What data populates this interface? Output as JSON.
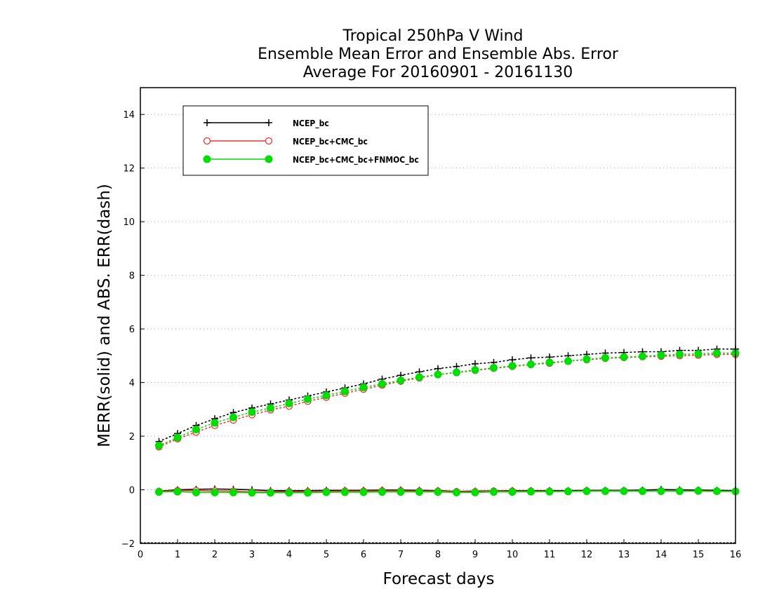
{
  "chart_data": {
    "type": "line",
    "title_lines": [
      "Tropical 250hPa V Wind",
      "Ensemble Mean Error and Ensemble Abs. Error",
      "Average For 20160901 - 20161130"
    ],
    "xlabel": "Forecast days",
    "ylabel": "MERR(solid) and ABS. ERR(dash)",
    "xlim": [
      0,
      16
    ],
    "ylim": [
      -2,
      15
    ],
    "xticks": [
      0,
      1,
      2,
      3,
      4,
      5,
      6,
      7,
      8,
      9,
      10,
      11,
      12,
      13,
      14,
      15,
      16
    ],
    "xtick_labels": [
      "0",
      "1",
      "2",
      "3",
      "4",
      "5",
      "6",
      "7",
      "8",
      "9",
      "10",
      "11",
      "12",
      "13",
      "14",
      "15",
      "16"
    ],
    "yticks": [
      -2,
      0,
      2,
      4,
      6,
      8,
      10,
      12,
      14
    ],
    "ytick_labels": [
      "−2",
      "0",
      "2",
      "4",
      "6",
      "8",
      "10",
      "12",
      "14"
    ],
    "grid": "horizontal dotted",
    "legend_position": "top-left",
    "x": [
      0.5,
      1.0,
      1.5,
      2.0,
      2.5,
      3.0,
      3.5,
      4.0,
      4.5,
      5.0,
      5.5,
      6.0,
      6.5,
      7.0,
      7.5,
      8.0,
      8.5,
      9.0,
      9.5,
      10.0,
      10.5,
      11.0,
      11.5,
      12.0,
      12.5,
      13.0,
      13.5,
      14.0,
      14.5,
      15.0,
      15.5,
      16.0
    ],
    "series": [
      {
        "name": "NCEP_bc",
        "color": "#000000",
        "marker": "plus",
        "merr": [
          -0.05,
          0.0,
          0.02,
          0.03,
          0.02,
          0.0,
          -0.03,
          -0.03,
          -0.03,
          -0.02,
          -0.02,
          -0.02,
          -0.01,
          -0.01,
          -0.02,
          -0.03,
          -0.06,
          -0.05,
          -0.04,
          -0.03,
          -0.03,
          -0.03,
          -0.03,
          -0.02,
          -0.02,
          -0.02,
          -0.01,
          0.01,
          0.0,
          -0.01,
          -0.02,
          -0.03
        ],
        "abs_err": [
          1.8,
          2.1,
          2.4,
          2.65,
          2.88,
          3.05,
          3.2,
          3.35,
          3.5,
          3.65,
          3.8,
          3.95,
          4.13,
          4.27,
          4.4,
          4.52,
          4.6,
          4.7,
          4.75,
          4.85,
          4.92,
          4.95,
          5.0,
          5.05,
          5.1,
          5.12,
          5.15,
          5.15,
          5.2,
          5.2,
          5.25,
          5.25
        ]
      },
      {
        "name": "NCEP_bc+CMC_bc",
        "color": "#ee3333",
        "marker": "open-circle",
        "merr": [
          -0.06,
          -0.03,
          -0.03,
          -0.04,
          -0.05,
          -0.08,
          -0.08,
          -0.07,
          -0.07,
          -0.06,
          -0.05,
          -0.05,
          -0.04,
          -0.04,
          -0.05,
          -0.05,
          -0.07,
          -0.07,
          -0.05,
          -0.05,
          -0.05,
          -0.05,
          -0.06,
          -0.04,
          -0.04,
          -0.04,
          -0.04,
          -0.04,
          -0.04,
          -0.05,
          -0.06,
          -0.06
        ],
        "abs_err": [
          1.6,
          1.9,
          2.15,
          2.4,
          2.6,
          2.8,
          2.98,
          3.12,
          3.3,
          3.45,
          3.6,
          3.75,
          3.9,
          4.05,
          4.17,
          4.3,
          4.37,
          4.45,
          4.53,
          4.6,
          4.67,
          4.72,
          4.8,
          4.85,
          4.9,
          4.93,
          4.96,
          4.98,
          5.0,
          5.02,
          5.05,
          5.05
        ]
      },
      {
        "name": "NCEP_bc+CMC_bc+FNMOC_bc",
        "color": "#00dd00",
        "marker": "filled-circle",
        "merr": [
          -0.08,
          -0.07,
          -0.1,
          -0.1,
          -0.1,
          -0.11,
          -0.11,
          -0.11,
          -0.11,
          -0.09,
          -0.09,
          -0.09,
          -0.08,
          -0.08,
          -0.08,
          -0.08,
          -0.1,
          -0.1,
          -0.08,
          -0.08,
          -0.07,
          -0.07,
          -0.06,
          -0.05,
          -0.05,
          -0.05,
          -0.05,
          -0.05,
          -0.05,
          -0.04,
          -0.05,
          -0.06
        ],
        "abs_err": [
          1.65,
          1.95,
          2.25,
          2.5,
          2.7,
          2.9,
          3.05,
          3.22,
          3.38,
          3.52,
          3.67,
          3.82,
          3.95,
          4.08,
          4.2,
          4.3,
          4.38,
          4.47,
          4.55,
          4.62,
          4.68,
          4.75,
          4.8,
          4.87,
          4.92,
          4.95,
          4.98,
          5.02,
          5.05,
          5.07,
          5.1,
          5.1
        ]
      }
    ]
  }
}
